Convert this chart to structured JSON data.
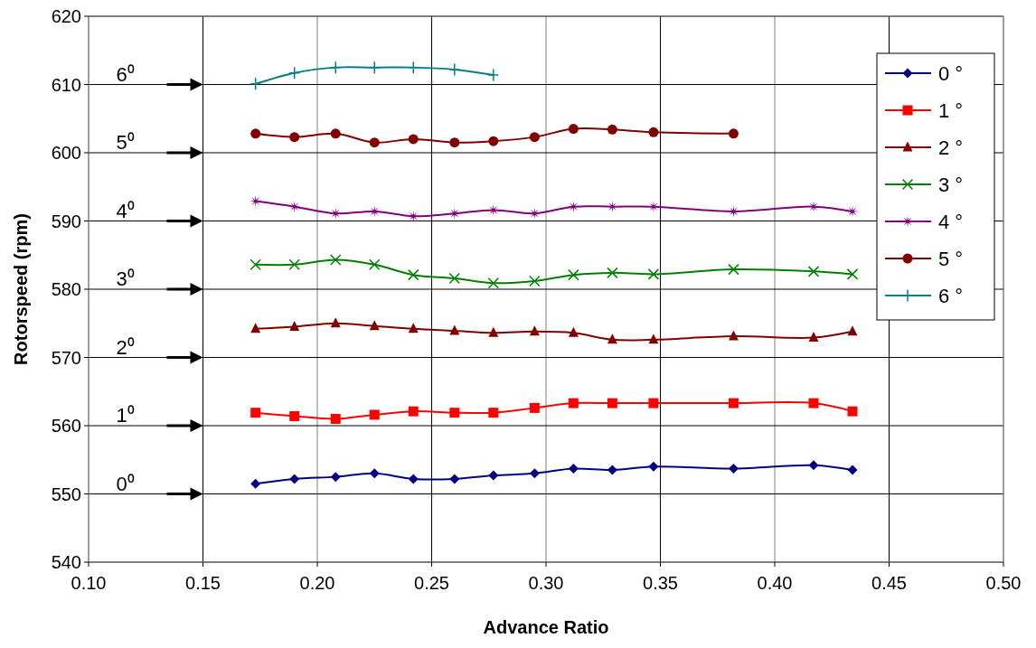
{
  "chart_data": {
    "type": "line",
    "xlabel": "Advance Ratio",
    "ylabel": "Rotorspeed (rpm)",
    "xlim": [
      0.1,
      0.5
    ],
    "xticks": [
      {
        "value": 0.1,
        "label": "0.10"
      },
      {
        "value": 0.15,
        "label": "0.15"
      },
      {
        "value": 0.2,
        "label": "0.20"
      },
      {
        "value": 0.25,
        "label": "0.25"
      },
      {
        "value": 0.3,
        "label": "0.30"
      },
      {
        "value": 0.35,
        "label": "0.35"
      },
      {
        "value": 0.4,
        "label": "0.40"
      },
      {
        "value": 0.45,
        "label": "0.45"
      },
      {
        "value": 0.5,
        "label": "0.50"
      }
    ],
    "ylim": [
      540,
      620
    ],
    "yticks": [
      540,
      550,
      560,
      570,
      580,
      590,
      600,
      610,
      620
    ],
    "grid": true,
    "legend": "top right",
    "line_style": "solid",
    "x": [
      0.173,
      0.19,
      0.208,
      0.225,
      0.242,
      0.26,
      0.277,
      0.295,
      0.312,
      0.329,
      0.347,
      0.382,
      0.417,
      0.434
    ],
    "series": [
      {
        "name": "0 °",
        "color": "#000080",
        "marker": "diamond",
        "values": [
          551.5,
          552.2,
          552.5,
          553.0,
          552.2,
          552.2,
          552.7,
          553.0,
          553.7,
          553.5,
          554.0,
          553.7,
          554.2,
          553.5
        ]
      },
      {
        "name": "1 °",
        "color": "#ff0000",
        "marker": "square",
        "values": [
          561.9,
          561.4,
          561.0,
          561.6,
          562.1,
          561.9,
          561.9,
          562.6,
          563.3,
          563.3,
          563.3,
          563.3,
          563.3,
          562.1
        ]
      },
      {
        "name": "2 °",
        "color": "#800000",
        "marker": "triangle",
        "values": [
          574.2,
          574.5,
          575.0,
          574.6,
          574.2,
          573.9,
          573.6,
          573.8,
          573.6,
          572.6,
          572.6,
          573.1,
          572.9,
          573.8
        ]
      },
      {
        "name": "3 °",
        "color": "#008000",
        "marker": "cross",
        "values": [
          583.6,
          583.6,
          584.3,
          583.6,
          582.1,
          581.6,
          580.9,
          581.2,
          582.1,
          582.4,
          582.2,
          582.9,
          582.6,
          582.2
        ]
      },
      {
        "name": "4 °",
        "color": "#800080",
        "marker": "star",
        "values": [
          592.9,
          592.1,
          591.1,
          591.4,
          590.7,
          591.1,
          591.6,
          591.1,
          592.1,
          592.1,
          592.1,
          591.4,
          592.1,
          591.4
        ]
      },
      {
        "name": "5 °",
        "color": "#800000",
        "marker": "circle",
        "x": [
          0.173,
          0.19,
          0.208,
          0.225,
          0.242,
          0.26,
          0.277,
          0.295,
          0.312,
          0.329,
          0.347,
          0.382
        ],
        "values": [
          602.8,
          602.3,
          602.8,
          601.5,
          602.0,
          601.5,
          601.7,
          602.3,
          603.5,
          603.4,
          603.0,
          602.8
        ]
      },
      {
        "name": "6 °",
        "color": "#008080",
        "marker": "plus",
        "x": [
          0.173,
          0.19,
          0.208,
          0.225,
          0.242,
          0.26,
          0.277
        ],
        "values": [
          610.1,
          611.7,
          612.5,
          612.5,
          612.5,
          612.2,
          611.4
        ]
      }
    ],
    "annotations": [
      "0⁰",
      "1⁰",
      "2⁰",
      "3⁰",
      "4⁰",
      "5⁰",
      "6⁰"
    ]
  }
}
